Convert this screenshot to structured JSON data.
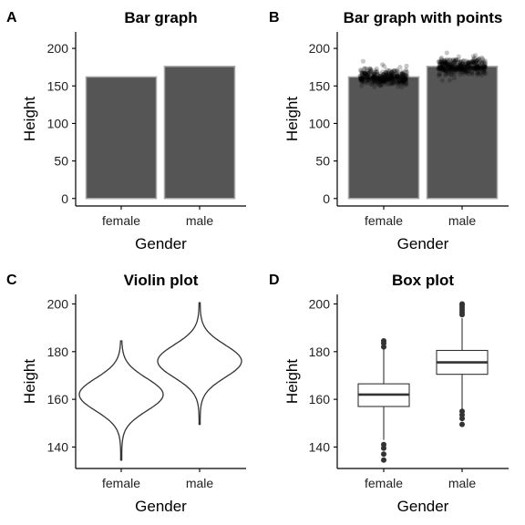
{
  "chart_data": [
    {
      "panel": "A",
      "type": "bar",
      "title": "Bar graph",
      "xlabel": "Gender",
      "ylabel": "Height",
      "categories": [
        "female",
        "male"
      ],
      "values": [
        162,
        176
      ],
      "ylim": [
        -10,
        222
      ],
      "yticks": [
        0,
        50,
        100,
        150,
        200
      ],
      "grid": false,
      "colors": {
        "bar_fill": "#555555",
        "bar_stroke": "#a6a6a6"
      }
    },
    {
      "panel": "B",
      "type": "bar",
      "title": "Bar graph with points",
      "xlabel": "Gender",
      "ylabel": "Height",
      "categories": [
        "female",
        "male"
      ],
      "values": [
        162,
        176
      ],
      "ylim": [
        -10,
        222
      ],
      "yticks": [
        0,
        50,
        100,
        150,
        200
      ],
      "points": {
        "female": {
          "min": 135,
          "max": 184,
          "center": 162
        },
        "male": {
          "min": 149,
          "max": 200,
          "center": 176
        }
      },
      "grid": false,
      "colors": {
        "bar_fill": "#555555",
        "bar_stroke": "#a6a6a6",
        "points": "#000000"
      }
    },
    {
      "panel": "C",
      "type": "violin",
      "title": "Violin plot",
      "xlabel": "Gender",
      "ylabel": "Height",
      "categories": [
        "female",
        "male"
      ],
      "ylim": [
        131,
        204
      ],
      "yticks": [
        140,
        160,
        180,
        200
      ],
      "violins": [
        {
          "name": "female",
          "min": 134.5,
          "max": 184.5,
          "center": 162,
          "sd": 6.8
        },
        {
          "name": "male",
          "min": 149.5,
          "max": 200.5,
          "center": 176,
          "sd": 6.8
        }
      ],
      "grid": false
    },
    {
      "panel": "D",
      "type": "box",
      "title": "Box plot",
      "xlabel": "Gender",
      "ylabel": "Height",
      "categories": [
        "female",
        "male"
      ],
      "ylim": [
        131,
        204
      ],
      "yticks": [
        140,
        160,
        180,
        200
      ],
      "boxes": [
        {
          "name": "female",
          "q1": 157,
          "median": 162,
          "q3": 166.5,
          "whisker_low": 143,
          "whisker_high": 181,
          "outliers": [
            184.5,
            183.5,
            182,
            141,
            139.5,
            137,
            134.5
          ]
        },
        {
          "name": "male",
          "q1": 170.5,
          "median": 175.5,
          "q3": 180.5,
          "whisker_low": 156,
          "whisker_high": 194,
          "outliers": [
            200,
            199.5,
            198.5,
            197.5,
            196.5,
            195.5,
            155,
            153.5,
            152,
            149.5
          ]
        }
      ],
      "grid": false
    }
  ]
}
